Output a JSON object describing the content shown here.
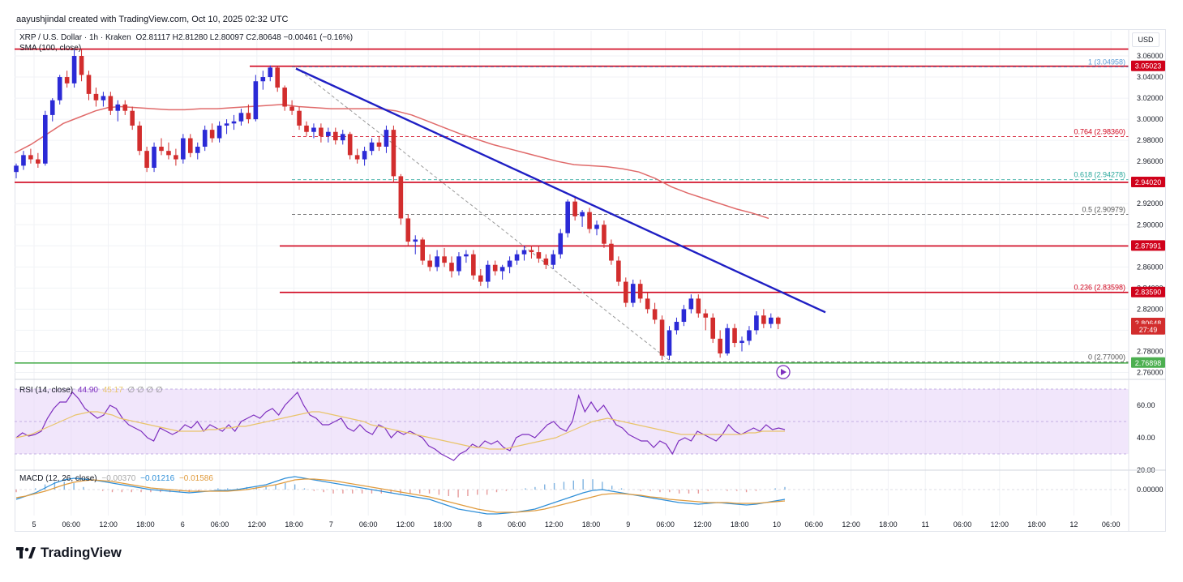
{
  "caption": "aayushjindal created with TradingView.com, Oct 10, 2025 02:32 UTC",
  "legend": {
    "symbol": "XRP / U.S. Dollar · 1h · Kraken",
    "ohlc": "O2.81117 H2.81280 L2.80097 C2.80648 −0.00461 (−0.16%)",
    "sma": "SMA (100, close)",
    "rsi_label": "RSI (14, close)",
    "rsi_values": "44.90",
    "rsi_extra": "45.17",
    "rsi_dots": "∅ ∅ ∅ ∅",
    "macd_label": "MACD (12, 26, close)",
    "macd_values": "−0.00370",
    "macd_signal": "−0.01216",
    "macd_hist": "−0.01586"
  },
  "currency": "USD",
  "brand": "TradingView",
  "colors": {
    "up": "#2b2ad6",
    "down": "#d22d2d",
    "sma": "#e06a6a",
    "trendline": "#1f1fc4",
    "resistance": "#d0021b",
    "support": "#4caf50",
    "fib": "#6b6b6b",
    "rsi_band": "#e8d5f9",
    "rsi_line": "#7e2fbf",
    "rsi_ma": "#e9c46a",
    "macd_line": "#2f8fd8",
    "macd_signal": "#e09b3d"
  },
  "chart_data": {
    "type": "candlestick",
    "ylim": [
      2.755,
      3.07
    ],
    "y_ticks": [
      "3.06000",
      "3.04000",
      "3.02000",
      "3.00000",
      "2.98000",
      "2.96000",
      "2.94000",
      "2.92000",
      "2.90000",
      "2.88000",
      "2.86000",
      "2.84000",
      "2.82000",
      "2.80000",
      "2.78000",
      "2.76000"
    ],
    "x_ticks": [
      "5",
      "06:00",
      "12:00",
      "18:00",
      "6",
      "06:00",
      "12:00",
      "18:00",
      "7",
      "06:00",
      "12:00",
      "18:00",
      "8",
      "06:00",
      "12:00",
      "18:00",
      "9",
      "06:00",
      "12:00",
      "18:00",
      "10",
      "06:00",
      "12:00",
      "18:00",
      "11",
      "06:00",
      "12:00",
      "18:00",
      "12",
      "06:00"
    ],
    "price_labels": [
      {
        "text": "3.05023",
        "value": 3.05023,
        "bg": "#d0021b"
      },
      {
        "text": "2.94020",
        "value": 2.9402,
        "bg": "#d0021b"
      },
      {
        "text": "2.87991",
        "value": 2.87991,
        "bg": "#d0021b"
      },
      {
        "text": "2.83590",
        "value": 2.8359,
        "bg": "#d0021b"
      },
      {
        "text": "2.80648",
        "value": 2.80648,
        "bg": "#d22d2d"
      },
      {
        "text": "27:49",
        "value": 2.8005,
        "bg": "#d22d2d"
      },
      {
        "text": "2.76898",
        "value": 2.76898,
        "bg": "#4caf50"
      }
    ],
    "fib_levels": [
      {
        "ratio": "1",
        "value": 3.04958,
        "label": "1 (3.04958)",
        "color": "#5b9bd5"
      },
      {
        "ratio": "0.764",
        "value": 2.9836,
        "label": "0.764 (2.98360)",
        "color": "#d0021b"
      },
      {
        "ratio": "0.618",
        "value": 2.94278,
        "label": "0.618 (2.94278)",
        "color": "#26a69a"
      },
      {
        "ratio": "0.5",
        "value": 2.90979,
        "label": "0.5 (2.90979)",
        "color": "#555555"
      },
      {
        "ratio": "0.236",
        "value": 2.83598,
        "label": "0.236 (2.83598)",
        "color": "#d0021b"
      },
      {
        "ratio": "0",
        "value": 2.77,
        "label": "0 (2.77000)",
        "color": "#555555"
      }
    ],
    "horizontal_lines": [
      {
        "value": 3.0665,
        "color": "#d0021b",
        "from": 0
      },
      {
        "value": 3.05023,
        "color": "#d0021b",
        "from": 290
      },
      {
        "value": 2.9402,
        "color": "#d0021b",
        "from": 0
      },
      {
        "value": 2.87991,
        "color": "#d0021b",
        "from": 327
      },
      {
        "value": 2.8359,
        "color": "#d0021b",
        "from": 327
      },
      {
        "value": 2.76898,
        "color": "#4caf50",
        "from": 0
      }
    ],
    "candles": [
      [
        2.95,
        2.958,
        2.944,
        2.956
      ],
      [
        2.956,
        2.97,
        2.952,
        2.966
      ],
      [
        2.966,
        2.972,
        2.958,
        2.962
      ],
      [
        2.962,
        2.968,
        2.954,
        2.958
      ],
      [
        2.958,
        3.008,
        2.956,
        3.004
      ],
      [
        3.004,
        3.02,
        2.998,
        3.018
      ],
      [
        3.018,
        3.042,
        3.014,
        3.04
      ],
      [
        3.04,
        3.046,
        3.03,
        3.034
      ],
      [
        3.034,
        3.066,
        3.03,
        3.06
      ],
      [
        3.06,
        3.066,
        3.036,
        3.042
      ],
      [
        3.042,
        3.046,
        3.018,
        3.024
      ],
      [
        3.024,
        3.03,
        3.012,
        3.018
      ],
      [
        3.018,
        3.026,
        3.012,
        3.022
      ],
      [
        3.022,
        3.026,
        3.004,
        3.008
      ],
      [
        3.008,
        3.018,
        2.998,
        3.014
      ],
      [
        3.014,
        3.018,
        3.004,
        3.008
      ],
      [
        3.008,
        3.012,
        2.99,
        2.994
      ],
      [
        2.994,
        2.998,
        2.966,
        2.97
      ],
      [
        2.97,
        2.974,
        2.95,
        2.954
      ],
      [
        2.954,
        2.978,
        2.95,
        2.974
      ],
      [
        2.974,
        2.982,
        2.966,
        2.97
      ],
      [
        2.97,
        2.978,
        2.962,
        2.966
      ],
      [
        2.966,
        2.972,
        2.956,
        2.962
      ],
      [
        2.962,
        2.986,
        2.958,
        2.982
      ],
      [
        2.982,
        2.986,
        2.964,
        2.968
      ],
      [
        2.968,
        2.978,
        2.962,
        2.974
      ],
      [
        2.974,
        2.994,
        2.97,
        2.99
      ],
      [
        2.99,
        2.996,
        2.978,
        2.982
      ],
      [
        2.982,
        2.998,
        2.978,
        2.994
      ],
      [
        2.994,
        3.0,
        2.986,
        2.996
      ],
      [
        2.996,
        3.004,
        2.99,
        2.998
      ],
      [
        2.998,
        3.01,
        2.994,
        3.006
      ],
      [
        3.006,
        3.014,
        2.996,
        3.0
      ],
      [
        3.0,
        3.042,
        2.998,
        3.036
      ],
      [
        3.036,
        3.046,
        3.028,
        3.04
      ],
      [
        3.04,
        3.051,
        3.036,
        3.049
      ],
      [
        3.049,
        3.05,
        3.026,
        3.03
      ],
      [
        3.03,
        3.032,
        3.008,
        3.012
      ],
      [
        3.012,
        3.018,
        3.004,
        3.008
      ],
      [
        3.008,
        3.012,
        2.99,
        2.994
      ],
      [
        2.994,
        2.998,
        2.984,
        2.988
      ],
      [
        2.988,
        2.996,
        2.982,
        2.992
      ],
      [
        2.992,
        2.996,
        2.978,
        2.984
      ],
      [
        2.984,
        2.992,
        2.978,
        2.988
      ],
      [
        2.988,
        2.992,
        2.976,
        2.98
      ],
      [
        2.98,
        2.99,
        2.976,
        2.986
      ],
      [
        2.986,
        2.988,
        2.962,
        2.966
      ],
      [
        2.966,
        2.972,
        2.958,
        2.962
      ],
      [
        2.962,
        2.974,
        2.956,
        2.97
      ],
      [
        2.97,
        2.982,
        2.966,
        2.978
      ],
      [
        2.978,
        2.984,
        2.97,
        2.974
      ],
      [
        2.974,
        2.994,
        2.968,
        2.99
      ],
      [
        2.99,
        2.994,
        2.94,
        2.946
      ],
      [
        2.946,
        2.948,
        2.9,
        2.906
      ],
      [
        2.906,
        2.91,
        2.88,
        2.884
      ],
      [
        2.884,
        2.89,
        2.872,
        2.886
      ],
      [
        2.886,
        2.888,
        2.862,
        2.866
      ],
      [
        2.866,
        2.872,
        2.856,
        2.86
      ],
      [
        2.86,
        2.876,
        2.856,
        2.87
      ],
      [
        2.87,
        2.878,
        2.86,
        2.864
      ],
      [
        2.864,
        2.87,
        2.85,
        2.856
      ],
      [
        2.856,
        2.874,
        2.852,
        2.87
      ],
      [
        2.87,
        2.876,
        2.864,
        2.872
      ],
      [
        2.872,
        2.876,
        2.848,
        2.852
      ],
      [
        2.852,
        2.858,
        2.842,
        2.846
      ],
      [
        2.846,
        2.866,
        2.84,
        2.862
      ],
      [
        2.862,
        2.866,
        2.852,
        2.856
      ],
      [
        2.856,
        2.862,
        2.848,
        2.86
      ],
      [
        2.86,
        2.87,
        2.854,
        2.866
      ],
      [
        2.866,
        2.876,
        2.862,
        2.872
      ],
      [
        2.872,
        2.88,
        2.866,
        2.876
      ],
      [
        2.876,
        2.88,
        2.868,
        2.874
      ],
      [
        2.874,
        2.88,
        2.864,
        2.868
      ],
      [
        2.868,
        2.872,
        2.858,
        2.862
      ],
      [
        2.862,
        2.876,
        2.858,
        2.872
      ],
      [
        2.872,
        2.896,
        2.868,
        2.892
      ],
      [
        2.892,
        2.924,
        2.888,
        2.922
      ],
      [
        2.922,
        2.926,
        2.904,
        2.908
      ],
      [
        2.908,
        2.914,
        2.898,
        2.912
      ],
      [
        2.912,
        2.916,
        2.892,
        2.896
      ],
      [
        2.896,
        2.904,
        2.89,
        2.9
      ],
      [
        2.9,
        2.904,
        2.878,
        2.882
      ],
      [
        2.882,
        2.886,
        2.862,
        2.866
      ],
      [
        2.866,
        2.87,
        2.842,
        2.846
      ],
      [
        2.846,
        2.85,
        2.822,
        2.826
      ],
      [
        2.826,
        2.848,
        2.822,
        2.844
      ],
      [
        2.844,
        2.848,
        2.826,
        2.83
      ],
      [
        2.83,
        2.836,
        2.816,
        2.82
      ],
      [
        2.82,
        2.826,
        2.806,
        2.81
      ],
      [
        2.81,
        2.814,
        2.772,
        2.776
      ],
      [
        2.776,
        2.804,
        2.772,
        2.8
      ],
      [
        2.8,
        2.812,
        2.796,
        2.808
      ],
      [
        2.808,
        2.824,
        2.804,
        2.82
      ],
      [
        2.82,
        2.834,
        2.816,
        2.83
      ],
      [
        2.83,
        2.834,
        2.812,
        2.816
      ],
      [
        2.816,
        2.82,
        2.8,
        2.812
      ],
      [
        2.812,
        2.816,
        2.788,
        2.792
      ],
      [
        2.792,
        2.8,
        2.774,
        2.778
      ],
      [
        2.778,
        2.806,
        2.776,
        2.802
      ],
      [
        2.802,
        2.806,
        2.784,
        2.788
      ],
      [
        2.788,
        2.794,
        2.78,
        2.79
      ],
      [
        2.79,
        2.804,
        2.786,
        2.8
      ],
      [
        2.8,
        2.818,
        2.796,
        2.814
      ],
      [
        2.814,
        2.82,
        2.802,
        2.806
      ],
      [
        2.806,
        2.816,
        2.802,
        2.812
      ],
      [
        2.812,
        2.813,
        2.801,
        2.806
      ]
    ],
    "sma_points": [
      [
        0,
        2.968
      ],
      [
        20,
        2.976
      ],
      [
        40,
        2.986
      ],
      [
        60,
        2.996
      ],
      [
        80,
        3.002
      ],
      [
        100,
        3.008
      ],
      [
        115,
        3.011
      ],
      [
        130,
        3.012
      ],
      [
        150,
        3.011
      ],
      [
        170,
        3.01
      ],
      [
        190,
        3.009
      ],
      [
        210,
        3.009
      ],
      [
        230,
        3.01
      ],
      [
        250,
        3.01
      ],
      [
        270,
        3.011
      ],
      [
        290,
        3.012
      ],
      [
        310,
        3.013
      ],
      [
        330,
        3.014
      ],
      [
        350,
        3.012
      ],
      [
        370,
        3.011
      ],
      [
        390,
        3.01
      ],
      [
        410,
        3.01
      ],
      [
        430,
        3.01
      ],
      [
        450,
        3.01
      ],
      [
        470,
        3.008
      ],
      [
        490,
        3.004
      ],
      [
        510,
        2.998
      ],
      [
        530,
        2.992
      ],
      [
        550,
        2.986
      ],
      [
        570,
        2.981
      ],
      [
        590,
        2.976
      ],
      [
        610,
        2.972
      ],
      [
        630,
        2.968
      ],
      [
        650,
        2.964
      ],
      [
        670,
        2.96
      ],
      [
        690,
        2.957
      ],
      [
        710,
        2.956
      ],
      [
        730,
        2.955
      ],
      [
        750,
        2.953
      ],
      [
        770,
        2.95
      ],
      [
        790,
        2.944
      ],
      [
        810,
        2.936
      ],
      [
        830,
        2.93
      ],
      [
        850,
        2.925
      ],
      [
        870,
        2.92
      ],
      [
        890,
        2.915
      ],
      [
        910,
        2.911
      ],
      [
        930,
        2.906
      ]
    ],
    "trendline": [
      [
        347,
        3.048
      ],
      [
        1000,
        2.817
      ]
    ],
    "diagonal": [
      [
        347,
        3.049
      ],
      [
        810,
        2.77
      ]
    ],
    "rsi": {
      "ylim": [
        20,
        75
      ],
      "y_ticks": [
        "60.00",
        "40.00",
        "20.00"
      ],
      "band": [
        30,
        70
      ],
      "values": [
        40,
        43,
        41,
        42,
        44,
        52,
        58,
        62,
        62,
        68,
        64,
        58,
        55,
        52,
        54,
        60,
        58,
        52,
        48,
        46,
        44,
        40,
        38,
        46,
        44,
        42,
        44,
        48,
        46,
        50,
        44,
        48,
        46,
        44,
        48,
        44,
        50,
        52,
        54,
        52,
        56,
        58,
        54,
        60,
        64,
        68,
        60,
        54,
        52,
        48,
        48,
        50,
        52,
        46,
        44,
        48,
        44,
        42,
        48,
        46,
        40,
        44,
        42,
        44,
        42,
        40,
        35,
        33,
        30,
        28,
        26,
        30,
        32,
        36,
        34,
        38,
        36,
        38,
        34,
        32,
        40,
        42,
        42,
        40,
        44,
        48,
        50,
        46,
        44,
        50,
        66,
        56,
        62,
        56,
        60,
        54,
        48,
        46,
        42,
        40,
        38,
        38,
        34,
        38,
        36,
        30,
        38,
        40,
        38,
        44,
        42,
        40,
        38,
        42,
        48,
        44,
        42,
        44,
        46,
        44,
        48,
        45,
        46,
        45
      ],
      "ma": [
        40,
        41,
        42,
        44,
        46,
        48,
        50,
        52,
        54,
        55,
        56,
        56,
        55,
        54,
        52,
        51,
        50,
        49,
        48,
        47,
        46,
        45,
        44,
        44,
        44,
        44,
        45,
        45,
        46,
        46,
        47,
        47,
        48,
        49,
        50,
        51,
        52,
        53,
        54,
        55,
        56,
        56,
        55,
        54,
        53,
        52,
        51,
        50,
        48,
        47,
        46,
        45,
        44,
        43,
        42,
        41,
        40,
        39,
        38,
        37,
        36,
        35,
        34,
        34,
        33,
        33,
        33,
        34,
        35,
        36,
        37,
        38,
        39,
        40,
        42,
        44,
        46,
        48,
        50,
        51,
        52,
        51,
        50,
        49,
        48,
        47,
        46,
        45,
        44,
        43,
        42,
        42,
        42,
        42,
        42,
        42,
        42,
        42,
        42,
        43,
        43,
        44,
        44,
        44,
        44
      ]
    },
    "macd": {
      "ylim": [
        -0.032,
        0.022
      ],
      "y_ticks": [
        "0.00000"
      ],
      "macd": [
        -0.012,
        -0.008,
        -0.004,
        0.002,
        0.008,
        0.012,
        0.014,
        0.013,
        0.012,
        0.01,
        0.008,
        0.006,
        0.004,
        0.002,
        0.0,
        -0.001,
        -0.002,
        -0.003,
        -0.004,
        -0.003,
        -0.002,
        -0.001,
        -0.001,
        0.0,
        0.002,
        0.004,
        0.006,
        0.01,
        0.014,
        0.016,
        0.014,
        0.012,
        0.01,
        0.008,
        0.006,
        0.004,
        0.002,
        0.0,
        -0.002,
        -0.004,
        -0.006,
        -0.008,
        -0.01,
        -0.012,
        -0.016,
        -0.02,
        -0.024,
        -0.026,
        -0.028,
        -0.03,
        -0.03,
        -0.029,
        -0.028,
        -0.026,
        -0.024,
        -0.02,
        -0.016,
        -0.012,
        -0.008,
        -0.004,
        -0.001,
        0.0,
        -0.002,
        -0.004,
        -0.006,
        -0.008,
        -0.01,
        -0.012,
        -0.014,
        -0.016,
        -0.017,
        -0.018,
        -0.017,
        -0.016,
        -0.017,
        -0.018,
        -0.019,
        -0.018,
        -0.016,
        -0.014,
        -0.012
      ],
      "signal": [
        -0.01,
        -0.008,
        -0.005,
        -0.002,
        0.002,
        0.006,
        0.009,
        0.011,
        0.012,
        0.011,
        0.01,
        0.008,
        0.006,
        0.004,
        0.002,
        0.001,
        0.0,
        -0.001,
        -0.002,
        -0.002,
        -0.002,
        -0.002,
        -0.002,
        -0.001,
        0.0,
        0.002,
        0.004,
        0.006,
        0.009,
        0.012,
        0.013,
        0.013,
        0.012,
        0.011,
        0.009,
        0.007,
        0.005,
        0.003,
        0.001,
        -0.001,
        -0.003,
        -0.005,
        -0.007,
        -0.009,
        -0.012,
        -0.015,
        -0.018,
        -0.021,
        -0.024,
        -0.026,
        -0.028,
        -0.028,
        -0.028,
        -0.027,
        -0.026,
        -0.024,
        -0.021,
        -0.018,
        -0.015,
        -0.012,
        -0.009,
        -0.006,
        -0.005,
        -0.005,
        -0.006,
        -0.007,
        -0.009,
        -0.01,
        -0.012,
        -0.013,
        -0.014,
        -0.015,
        -0.016,
        -0.016,
        -0.016,
        -0.017,
        -0.017,
        -0.017,
        -0.016,
        -0.015,
        -0.014
      ]
    }
  }
}
